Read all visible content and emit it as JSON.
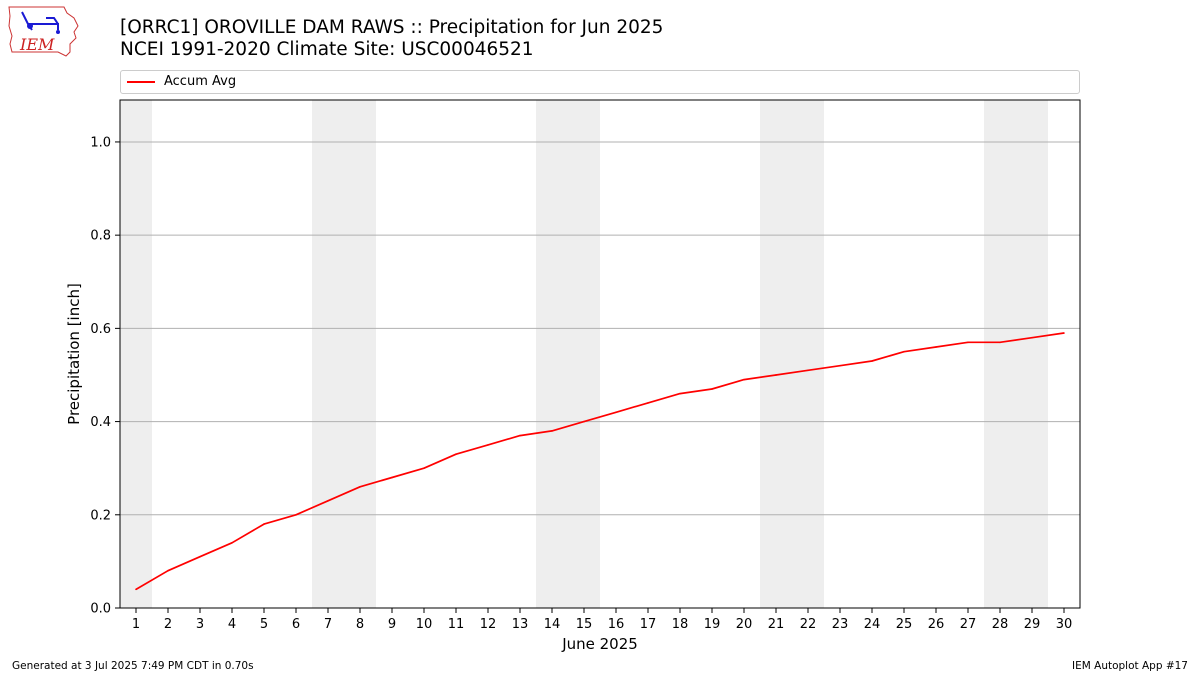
{
  "header": {
    "title_line1": "[ORRC1] OROVILLE DAM RAWS :: Precipitation for Jun 2025",
    "title_line2": "NCEI 1991-2020 Climate Site: USC00046521"
  },
  "logo": {
    "text": "IEM",
    "icon": "iem-logo"
  },
  "legend": {
    "label": "Accum Avg",
    "color": "#ff0000",
    "placement": "top, above plot"
  },
  "footer": {
    "left": "Generated at 3 Jul 2025 7:49 PM CDT in 0.70s",
    "right": "IEM Autoplot App #17"
  },
  "chart_data": {
    "type": "line",
    "xlabel": "June 2025",
    "ylabel": "Precipitation [inch]",
    "x": [
      1,
      2,
      3,
      4,
      5,
      6,
      7,
      8,
      9,
      10,
      11,
      12,
      13,
      14,
      15,
      16,
      17,
      18,
      19,
      20,
      21,
      22,
      23,
      24,
      25,
      26,
      27,
      28,
      29,
      30
    ],
    "xlim": [
      0.5,
      30.5
    ],
    "ylim": [
      0,
      1.09
    ],
    "yticks": [
      0.0,
      0.2,
      0.4,
      0.6,
      0.8,
      1.0
    ],
    "ytick_labels": [
      "0.0",
      "0.2",
      "0.4",
      "0.6",
      "0.8",
      "1.0"
    ],
    "grid": "horizontal",
    "weekend_shading": [
      [
        0.5,
        1.5
      ],
      [
        6.5,
        8.5
      ],
      [
        13.5,
        15.5
      ],
      [
        20.5,
        22.5
      ],
      [
        27.5,
        29.5
      ]
    ],
    "shade_color": "#eeeeee",
    "series": [
      {
        "name": "Accum Avg",
        "color": "#ff0000",
        "values": [
          0.04,
          0.08,
          0.11,
          0.14,
          0.18,
          0.2,
          0.23,
          0.26,
          0.28,
          0.3,
          0.33,
          0.35,
          0.37,
          0.38,
          0.4,
          0.42,
          0.44,
          0.46,
          0.47,
          0.49,
          0.5,
          0.51,
          0.52,
          0.53,
          0.55,
          0.56,
          0.57,
          0.57,
          0.58,
          0.59
        ]
      }
    ]
  }
}
